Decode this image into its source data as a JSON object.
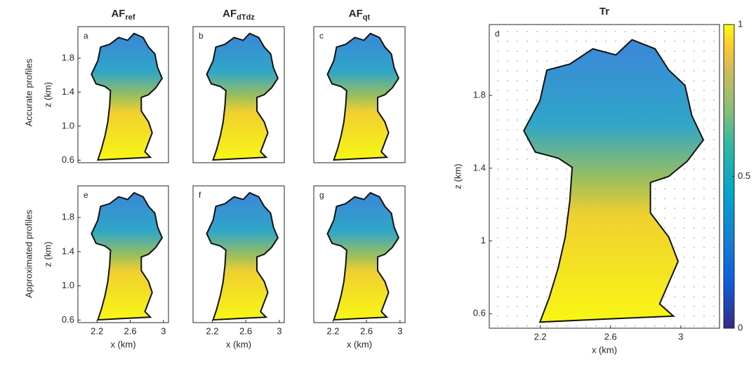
{
  "row_labels": [
    "Accurate profiles",
    "Approximated profiles"
  ],
  "chart_data": [
    {
      "type": "field",
      "title": "AF",
      "title_subscript": "ref",
      "annotation": "a",
      "ylabel": "z (km)",
      "ylim": [
        0.57,
        2.17
      ],
      "yticks": [
        0.6,
        {
          "value": 1.0,
          "label": "1.0"
        },
        1.4,
        1.8
      ]
    },
    {
      "type": "field",
      "title": "AF",
      "title_subscript": "dTdz",
      "annotation": "b"
    },
    {
      "type": "field",
      "title": "AF",
      "title_subscript": "qt",
      "annotation": "c"
    },
    {
      "type": "field",
      "annotation": "e",
      "xlabel": "x (km)",
      "ylabel": "z (km)",
      "xlim": [
        1.97,
        3.06
      ],
      "xticks": [
        2.2,
        2.6,
        3
      ],
      "ylim": [
        0.57,
        2.17
      ],
      "yticks": [
        0.6,
        {
          "value": 1.0,
          "label": "1.0"
        },
        1.4,
        1.8
      ]
    },
    {
      "type": "field",
      "annotation": "f",
      "xlabel": "x (km)",
      "xlim": [
        1.97,
        3.06
      ],
      "xticks": [
        2.2,
        2.6,
        3
      ]
    },
    {
      "type": "field",
      "annotation": "g",
      "xlabel": "x (km)",
      "xlim": [
        1.97,
        3.06
      ],
      "xticks": [
        2.2,
        2.6,
        3
      ]
    },
    {
      "type": "field",
      "title": "Tr",
      "annotation": "d",
      "xlabel": "x (km)",
      "ylabel": "z (km)",
      "xlim": [
        1.91,
        3.22
      ],
      "xticks": [
        2.2,
        2.6,
        3
      ],
      "ylim": [
        0.52,
        2.19
      ],
      "yticks": [
        0.6,
        1,
        1.4,
        1.8
      ],
      "colorbar": {
        "lim": [
          0,
          1
        ],
        "ticks": [
          0,
          0.5,
          1
        ]
      }
    }
  ]
}
